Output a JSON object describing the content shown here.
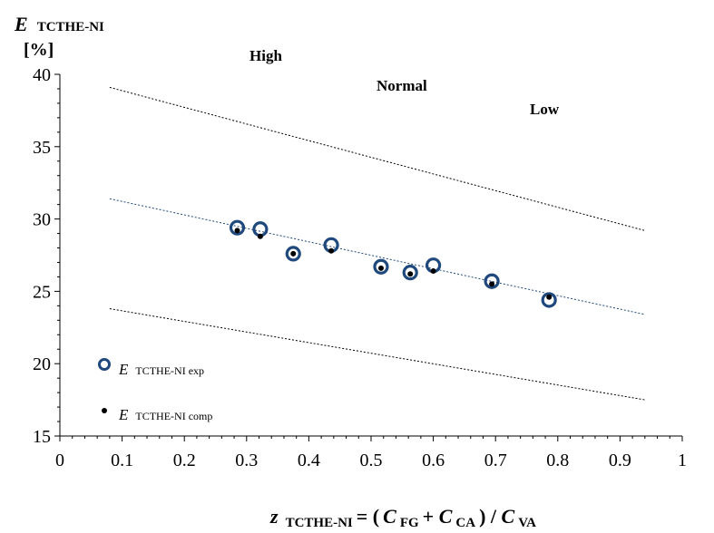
{
  "chart_data": {
    "type": "scatter",
    "xlim": [
      0,
      1
    ],
    "ylim": [
      15,
      40
    ],
    "x_ticks": [
      "0",
      "0.1",
      "0.2",
      "0.3",
      "0.4",
      "0.5",
      "0.6",
      "0.7",
      "0.8",
      "0.9",
      "1"
    ],
    "y_ticks": [
      "15",
      "20",
      "25",
      "30",
      "35",
      "40"
    ],
    "ylabel": {
      "main": "E",
      "sub": "TCTHE-NI",
      "unit": "[%]"
    },
    "xlabel": {
      "z": "z",
      "z_sub": "TCTHE-NI",
      "eq": " = (",
      "c1": "C",
      "c1_sub": "FG",
      "plus": " + ",
      "c2": "C",
      "c2_sub": "CA",
      "close": ") / ",
      "c3": "C",
      "c3_sub": "VA"
    },
    "regions": {
      "high": "High",
      "normal": "Normal",
      "low": "Low"
    },
    "series": [
      {
        "name": "E TCTHE-NI exp",
        "legend_main": "E",
        "legend_sub": "TCTHE-NI exp",
        "marker": "open-circle",
        "color": "#1f497d",
        "x": [
          0.285,
          0.322,
          0.375,
          0.436,
          0.516,
          0.563,
          0.6,
          0.694,
          0.786
        ],
        "y": [
          29.4,
          29.3,
          27.6,
          28.2,
          26.7,
          26.3,
          26.8,
          25.7,
          24.4
        ]
      },
      {
        "name": "E TCTHE-NI comp",
        "legend_main": "E",
        "legend_sub": "TCTHE-NI comp",
        "marker": "dot",
        "color": "#000000",
        "x": [
          0.285,
          0.322,
          0.375,
          0.436,
          0.516,
          0.563,
          0.6,
          0.694,
          0.786
        ],
        "y": [
          29.2,
          28.8,
          27.6,
          27.8,
          26.6,
          26.2,
          26.4,
          25.5,
          24.6
        ]
      }
    ],
    "lines": [
      {
        "role": "upper-bound",
        "x": [
          0.08,
          0.94
        ],
        "y": [
          39.1,
          29.2
        ],
        "color": "#000000",
        "dash": "dotted"
      },
      {
        "role": "fit",
        "x": [
          0.08,
          0.94
        ],
        "y": [
          31.4,
          23.4
        ],
        "color": "#1f497d",
        "dash": "dotted"
      },
      {
        "role": "lower-bound",
        "x": [
          0.08,
          0.94
        ],
        "y": [
          23.8,
          17.5
        ],
        "color": "#000000",
        "dash": "dotted"
      }
    ],
    "grid": false,
    "legend_position": "bottom-left"
  }
}
